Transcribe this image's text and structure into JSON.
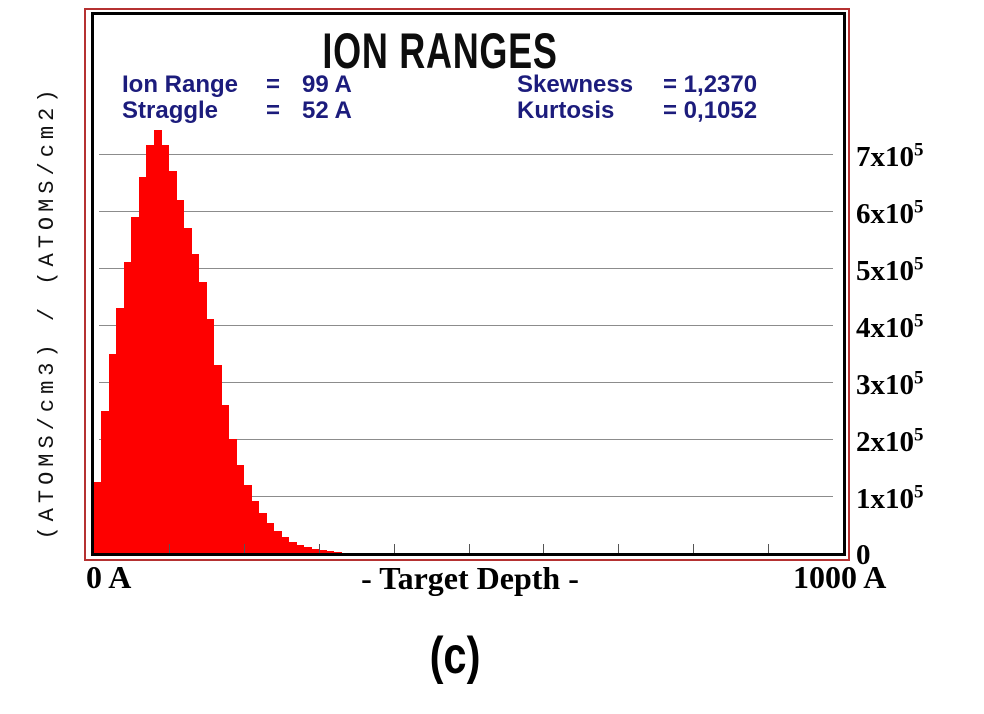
{
  "title": "ION RANGES",
  "stats": {
    "row1": {
      "label_left": "Ion Range",
      "eq_left": "=",
      "value_left": "99 A",
      "label_right": "Skewness",
      "value_right": "= 1,2370"
    },
    "row2": {
      "label_left": "Straggle",
      "eq_left": "=",
      "value_left": "52 A",
      "label_right": "Kurtosis",
      "value_right": "= 0,1052"
    }
  },
  "axes": {
    "y_left_title": "(ATOMS/cm3) / (ATOMS/cm2)",
    "x_label": "- Target Depth -",
    "x_min_label": "0 A",
    "x_max_label": "1000 A",
    "y_zero_label": "0",
    "y_tick_labels": [
      {
        "base": "1x10",
        "sup": "5",
        "value": 100000
      },
      {
        "base": "2x10",
        "sup": "5",
        "value": 200000
      },
      {
        "base": "3x10",
        "sup": "5",
        "value": 300000
      },
      {
        "base": "4x10",
        "sup": "5",
        "value": 400000
      },
      {
        "base": "5x10",
        "sup": "5",
        "value": 500000
      },
      {
        "base": "6x10",
        "sup": "5",
        "value": 600000
      },
      {
        "base": "7x10",
        "sup": "5",
        "value": 700000
      }
    ]
  },
  "caption": "(c)",
  "colors": {
    "bar_red": "#fe0000",
    "border_red": "#b53131",
    "navy": "#1c1c7c",
    "grid_gray": "#8c8c8c"
  },
  "chart_data": {
    "type": "bar",
    "title": "ION RANGES",
    "xlabel": "- Target Depth -",
    "ylabel": "(ATOMS/cm3) / (ATOMS/cm2)",
    "x_unit": "Angstrom",
    "xlim": [
      0,
      1000
    ],
    "ylim": [
      0,
      940000
    ],
    "grid": "horizontal-only",
    "legend": "none",
    "bin_start": 0,
    "bin_width": 10,
    "values": [
      125000,
      250000,
      350000,
      430000,
      510000,
      590000,
      660000,
      715000,
      742000,
      715000,
      670000,
      620000,
      570000,
      525000,
      475000,
      410000,
      330000,
      260000,
      200000,
      155000,
      120000,
      92000,
      70000,
      52000,
      38000,
      28000,
      20000,
      14000,
      10000,
      7000,
      5000,
      3000,
      2000
    ],
    "y_ticks": [
      0,
      100000,
      200000,
      300000,
      400000,
      500000,
      600000,
      700000
    ],
    "x_ticks": [
      100,
      200,
      300,
      400,
      500,
      600,
      700,
      800,
      900
    ],
    "stats": {
      "ion_range": "99 A",
      "straggle": "52 A",
      "skewness": "1,2370",
      "kurtosis": "0,1052"
    }
  }
}
